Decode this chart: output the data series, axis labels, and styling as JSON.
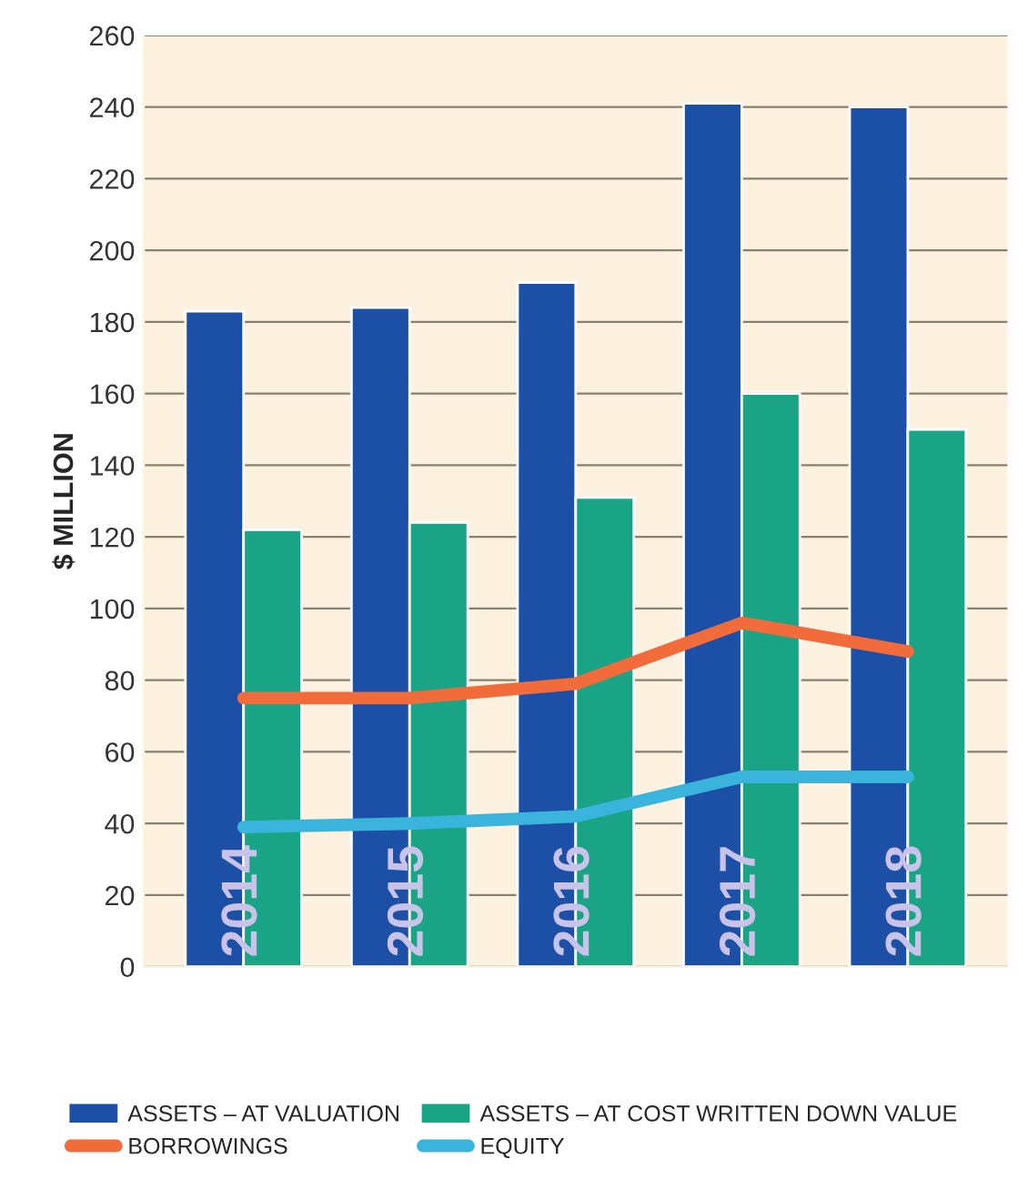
{
  "chart_data": {
    "type": "bar",
    "ylabel": "$ MILLION",
    "categories": [
      "2014",
      "2015",
      "2016",
      "2017",
      "2018"
    ],
    "series": [
      {
        "name": "ASSETS – AT VALUATION",
        "color": "#1c4fa6",
        "values": [
          183,
          184,
          191,
          241,
          240
        ]
      },
      {
        "name": "ASSETS – AT COST WRITTEN DOWN VALUE",
        "color": "#1aa486",
        "values": [
          122,
          124,
          131,
          160,
          150
        ]
      },
      {
        "name": "BORROWINGS",
        "type": "line",
        "color": "#f26b3a",
        "values": [
          75,
          75,
          79,
          96,
          88
        ]
      },
      {
        "name": "EQUITY",
        "type": "line",
        "color": "#3ab4dc",
        "values": [
          39,
          40,
          42,
          53,
          53
        ]
      }
    ],
    "ylim": [
      0,
      260
    ],
    "yticks": [
      0,
      20,
      40,
      60,
      80,
      100,
      120,
      140,
      160,
      180,
      200,
      220,
      240,
      260
    ],
    "grid": "y",
    "legend": "bottom",
    "marker": "none",
    "line_style": "solid"
  }
}
